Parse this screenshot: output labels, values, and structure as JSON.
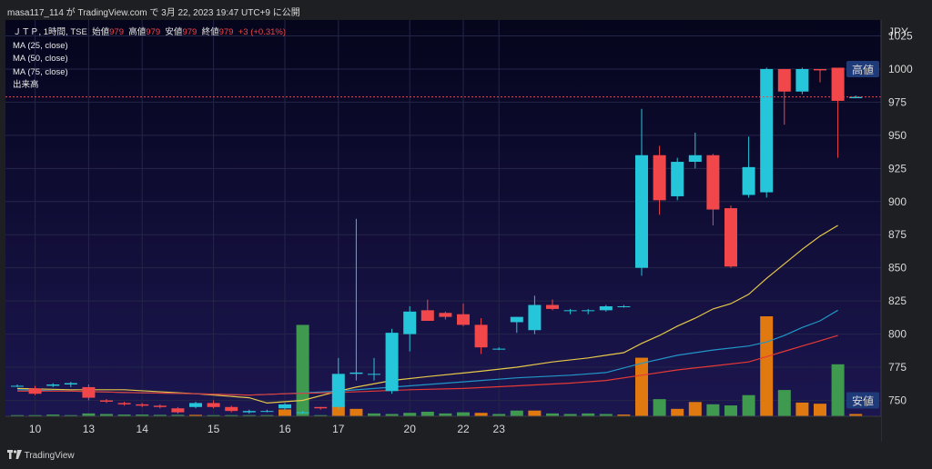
{
  "header": {
    "title": "masa117_114 が TradingView.com で 3月 22, 2023 19:47 UTC+9 に公開"
  },
  "legend": {
    "symbol": "ＪＴＰ, 1時間, TSE",
    "ohlc": [
      {
        "label": "始値",
        "value": "979"
      },
      {
        "label": "高値",
        "value": "979"
      },
      {
        "label": "安値",
        "value": "979"
      },
      {
        "label": "終値",
        "value": "979"
      }
    ],
    "change": "+3 (+0.31%)",
    "indicators": [
      "MA (25, close)",
      "MA (50, close)",
      "MA (75, close)",
      "出来高"
    ]
  },
  "footer": {
    "brand": "TradingView"
  },
  "colors": {
    "up": "#26c6da",
    "down": "#f2474a",
    "vol_up": "#3f9a4f",
    "vol_down": "#e07a10",
    "ma25": "#e6c84a",
    "ma50": "#2196c8",
    "ma75": "#e53935"
  },
  "chart_data": {
    "type": "candlestick",
    "currency": "JPY",
    "yticks": [
      1025,
      1000,
      975,
      950,
      925,
      900,
      875,
      850,
      825,
      800,
      775,
      750
    ],
    "ylim": [
      738,
      1037
    ],
    "xticks": [
      {
        "label": "10",
        "index": 1
      },
      {
        "label": "13",
        "index": 4
      },
      {
        "label": "14",
        "index": 7
      },
      {
        "label": "15",
        "index": 11
      },
      {
        "label": "16",
        "index": 15
      },
      {
        "label": "17",
        "index": 18
      },
      {
        "label": "20",
        "index": 22
      },
      {
        "label": "22",
        "index": 25
      },
      {
        "label": "23",
        "index": 27
      }
    ],
    "high_marker": {
      "label": "高値",
      "value": 1000
    },
    "low_marker": {
      "label": "安値",
      "value": 750
    },
    "last_price": 979,
    "candles": [
      [
        761,
        762,
        760,
        761
      ],
      [
        759,
        761,
        754,
        755
      ],
      [
        761,
        763,
        760,
        762
      ],
      [
        762,
        764,
        760,
        763
      ],
      [
        760,
        762,
        750,
        752
      ],
      [
        750,
        751,
        748,
        749
      ],
      [
        748,
        749,
        746,
        747
      ],
      [
        747,
        748,
        745,
        746
      ],
      [
        746,
        747,
        744,
        745
      ],
      [
        744,
        745,
        740,
        741
      ],
      [
        745,
        749,
        744,
        748
      ],
      [
        748,
        750,
        744,
        745
      ],
      [
        745,
        746,
        741,
        742
      ],
      [
        741,
        743,
        740,
        742
      ],
      [
        742,
        743,
        741,
        742
      ],
      [
        744,
        748,
        743,
        747
      ],
      [
        741,
        742,
        740,
        741
      ],
      [
        745,
        745,
        743,
        744
      ],
      [
        745,
        782,
        743,
        770
      ],
      [
        770,
        887,
        765,
        771
      ],
      [
        770,
        782,
        765,
        770
      ],
      [
        757,
        804,
        755,
        801
      ],
      [
        800,
        821,
        787,
        817
      ],
      [
        818,
        826,
        811,
        810
      ],
      [
        816,
        817,
        811,
        813
      ],
      [
        815,
        823,
        806,
        807
      ],
      [
        807,
        812,
        785,
        790
      ],
      [
        789,
        790,
        788,
        789
      ],
      [
        809,
        813,
        801,
        813
      ],
      [
        803,
        829,
        800,
        822
      ],
      [
        822,
        826,
        818,
        819
      ],
      [
        818,
        819,
        815,
        818
      ],
      [
        818,
        819,
        815,
        818
      ],
      [
        818,
        822,
        817,
        821
      ],
      [
        821,
        822,
        820,
        821
      ],
      [
        850,
        970,
        844,
        935
      ],
      [
        935,
        942,
        890,
        901
      ],
      [
        904,
        933,
        901,
        930
      ],
      [
        930,
        952,
        925,
        935
      ],
      [
        935,
        936,
        882,
        894
      ],
      [
        895,
        897,
        850,
        851
      ],
      [
        905,
        949,
        903,
        926
      ],
      [
        907,
        1001,
        903,
        1000
      ],
      [
        1000,
        1000,
        958,
        983
      ],
      [
        983,
        1001,
        981,
        1000
      ],
      [
        1000,
        1000,
        990,
        999
      ],
      [
        1001,
        1001,
        933,
        976
      ],
      [
        978,
        980,
        978,
        979
      ]
    ],
    "volume_ylim": [
      0,
      350
    ],
    "volume": [
      [
        4,
        1
      ],
      [
        4,
        1
      ],
      [
        6,
        1
      ],
      [
        4,
        1
      ],
      [
        10,
        1
      ],
      [
        8,
        1
      ],
      [
        6,
        1
      ],
      [
        6,
        1
      ],
      [
        5,
        1
      ],
      [
        5,
        1
      ],
      [
        5,
        0
      ],
      [
        4,
        1
      ],
      [
        4,
        1
      ],
      [
        4,
        1
      ],
      [
        4,
        1
      ],
      [
        24,
        0
      ],
      [
        320,
        1
      ],
      [
        4,
        1
      ],
      [
        36,
        0
      ],
      [
        26,
        0
      ],
      [
        10,
        1
      ],
      [
        8,
        1
      ],
      [
        12,
        1
      ],
      [
        16,
        1
      ],
      [
        10,
        1
      ],
      [
        14,
        1
      ],
      [
        12,
        0
      ],
      [
        8,
        1
      ],
      [
        20,
        1
      ],
      [
        20,
        0
      ],
      [
        10,
        1
      ],
      [
        8,
        1
      ],
      [
        10,
        1
      ],
      [
        8,
        1
      ],
      [
        6,
        0
      ],
      [
        205,
        0
      ],
      [
        60,
        1
      ],
      [
        26,
        0
      ],
      [
        50,
        0
      ],
      [
        42,
        1
      ],
      [
        38,
        1
      ],
      [
        74,
        1
      ],
      [
        366,
        0
      ],
      [
        92,
        1
      ],
      [
        48,
        0
      ],
      [
        44,
        0
      ],
      [
        182,
        1
      ],
      [
        8,
        0
      ]
    ],
    "ma": [
      {
        "name": "MA (25, close)",
        "color": "#e6c84a",
        "points": [
          [
            0,
            759
          ],
          [
            3,
            758
          ],
          [
            6,
            758
          ],
          [
            10,
            755
          ],
          [
            13,
            752
          ],
          [
            14,
            748
          ],
          [
            16,
            750
          ],
          [
            18,
            757
          ],
          [
            19,
            760
          ],
          [
            21,
            765
          ],
          [
            23,
            768
          ],
          [
            26,
            772
          ],
          [
            28,
            775
          ],
          [
            30,
            779
          ],
          [
            32,
            782
          ],
          [
            33,
            784
          ],
          [
            34,
            786
          ],
          [
            35,
            793
          ],
          [
            36,
            799
          ],
          [
            37,
            806
          ],
          [
            38,
            812
          ],
          [
            39,
            819
          ],
          [
            40,
            823
          ],
          [
            41,
            830
          ],
          [
            42,
            842
          ],
          [
            43,
            853
          ],
          [
            44,
            864
          ],
          [
            45,
            874
          ],
          [
            46,
            882
          ]
        ]
      },
      {
        "name": "MA (50, close)",
        "color": "#2196c8",
        "points": [
          [
            0,
            758
          ],
          [
            3,
            757
          ],
          [
            6,
            756
          ],
          [
            10,
            755
          ],
          [
            13,
            754
          ],
          [
            15,
            755
          ],
          [
            18,
            757
          ],
          [
            20,
            759
          ],
          [
            22,
            761
          ],
          [
            25,
            764
          ],
          [
            28,
            767
          ],
          [
            31,
            769
          ],
          [
            33,
            771
          ],
          [
            35,
            778
          ],
          [
            37,
            784
          ],
          [
            39,
            788
          ],
          [
            41,
            791
          ],
          [
            42,
            794
          ],
          [
            43,
            799
          ],
          [
            44,
            805
          ],
          [
            45,
            810
          ],
          [
            46,
            818
          ]
        ]
      },
      {
        "name": "MA (75, close)",
        "color": "#e53935",
        "points": [
          [
            0,
            757
          ],
          [
            3,
            757
          ],
          [
            6,
            756
          ],
          [
            10,
            755
          ],
          [
            13,
            754
          ],
          [
            15,
            755
          ],
          [
            18,
            756
          ],
          [
            20,
            757
          ],
          [
            22,
            758
          ],
          [
            25,
            759
          ],
          [
            28,
            761
          ],
          [
            31,
            763
          ],
          [
            33,
            765
          ],
          [
            35,
            769
          ],
          [
            37,
            773
          ],
          [
            39,
            776
          ],
          [
            41,
            779
          ],
          [
            42,
            783
          ],
          [
            43,
            787
          ],
          [
            44,
            791
          ],
          [
            45,
            795
          ],
          [
            46,
            799
          ]
        ]
      }
    ]
  }
}
